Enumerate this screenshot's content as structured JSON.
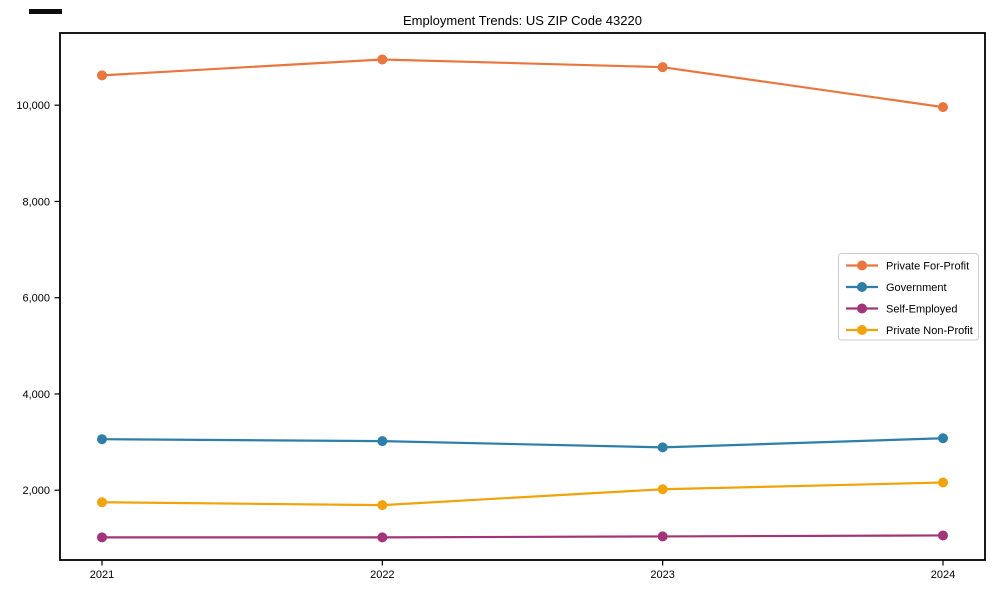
{
  "chart_data": {
    "type": "line",
    "title": "Employment Trends: US ZIP Code 43220",
    "categories": [
      "2021",
      "2022",
      "2023",
      "2024"
    ],
    "series": [
      {
        "name": "Private For-Profit",
        "color": "#e8763e",
        "values": [
          10620,
          10950,
          10790,
          9960
        ]
      },
      {
        "name": "Government",
        "color": "#2d7fa8",
        "values": [
          3060,
          3020,
          2890,
          3080
        ]
      },
      {
        "name": "Self-Employed",
        "color": "#a23579",
        "values": [
          1020,
          1020,
          1040,
          1060
        ]
      },
      {
        "name": "Private Non-Profit",
        "color": "#f0a30a",
        "values": [
          1750,
          1690,
          2020,
          2160
        ]
      }
    ],
    "xlabel": "",
    "ylabel": "",
    "ylim": [
      550,
      11500
    ],
    "yticks": [
      2000,
      4000,
      6000,
      8000,
      10000
    ],
    "ytick_labels": [
      "2,000",
      "4,000",
      "6,000",
      "8,000",
      "10,000"
    ],
    "grid": false,
    "marker": "circle",
    "legend": {
      "position": "center-right",
      "entries": [
        "Private For-Profit",
        "Government",
        "Self-Employed",
        "Private Non-Profit"
      ]
    },
    "style": {
      "spine_color": "#000000",
      "legend_border_color": "#cccccc",
      "legend_bg": "#ffffff"
    }
  }
}
